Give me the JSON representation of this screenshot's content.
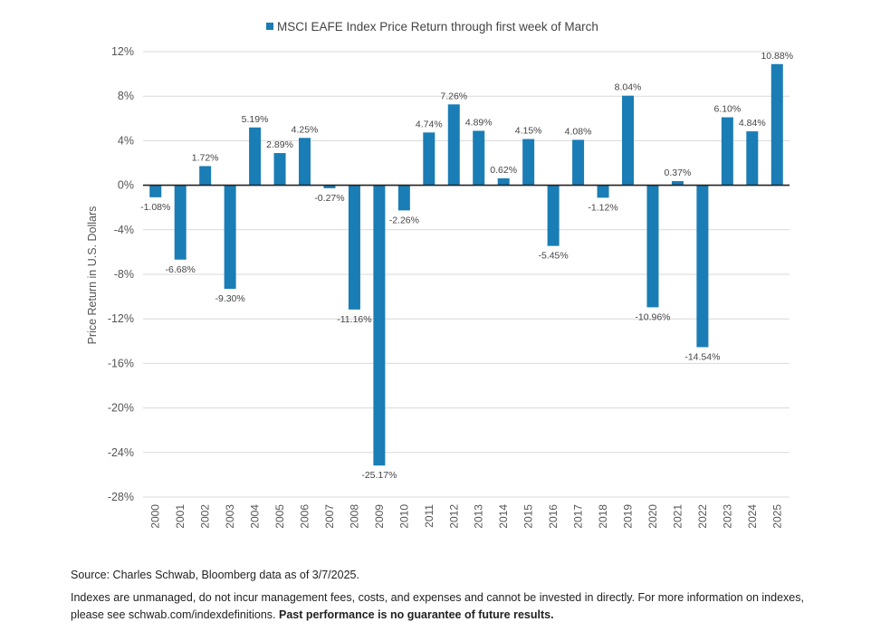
{
  "chart_data": {
    "type": "bar",
    "legend": "MSCI EAFE Index Price Return through first week of March",
    "legend_position": "top-center",
    "color": "#1a7db5",
    "ylabel": "Price Return in U.S. Dollars",
    "ylim": [
      -28,
      12
    ],
    "yticks": [
      12,
      8,
      4,
      0,
      -4,
      -8,
      -12,
      -16,
      -20,
      -24,
      -28
    ],
    "ytick_labels": [
      "12%",
      "8%",
      "4%",
      "0%",
      "-4%",
      "-8%",
      "-12%",
      "-16%",
      "-20%",
      "-24%",
      "-28%"
    ],
    "grid": true,
    "categories": [
      "2000",
      "2001",
      "2002",
      "2003",
      "2004",
      "2005",
      "2006",
      "2007",
      "2008",
      "2009",
      "2010",
      "2011",
      "2012",
      "2013",
      "2014",
      "2015",
      "2016",
      "2017",
      "2018",
      "2019",
      "2020",
      "2021",
      "2022",
      "2023",
      "2024",
      "2025"
    ],
    "values": [
      -1.08,
      -6.68,
      1.72,
      -9.3,
      5.19,
      2.89,
      4.25,
      -0.27,
      -11.16,
      -25.17,
      -2.26,
      4.74,
      7.26,
      4.89,
      0.62,
      4.15,
      -5.45,
      4.08,
      -1.12,
      8.04,
      -10.96,
      0.37,
      -14.54,
      6.1,
      4.84,
      10.88
    ],
    "data_labels": [
      "-1.08%",
      "-6.68%",
      "1.72%",
      "-9.30%",
      "5.19%",
      "2.89%",
      "4.25%",
      "-0.27%",
      "-11.16%",
      "-25.17%",
      "-2.26%",
      "4.74%",
      "7.26%",
      "4.89%",
      "0.62%",
      "4.15%",
      "-5.45%",
      "4.08%",
      "-1.12%",
      "8.04%",
      "-10.96%",
      "0.37%",
      "-14.54%",
      "6.10%",
      "4.84%",
      "10.88%"
    ]
  },
  "footnotes": {
    "source": "Source: Charles Schwab, Bloomberg data as of 3/7/2025.",
    "disclaimer": "Indexes are unmanaged, do not incur management fees, costs, and expenses and cannot be invested in directly. For more information on indexes, please see schwab.com/indexdefinitions.",
    "disclaimer_bold": "Past performance is no guarantee of future results."
  }
}
